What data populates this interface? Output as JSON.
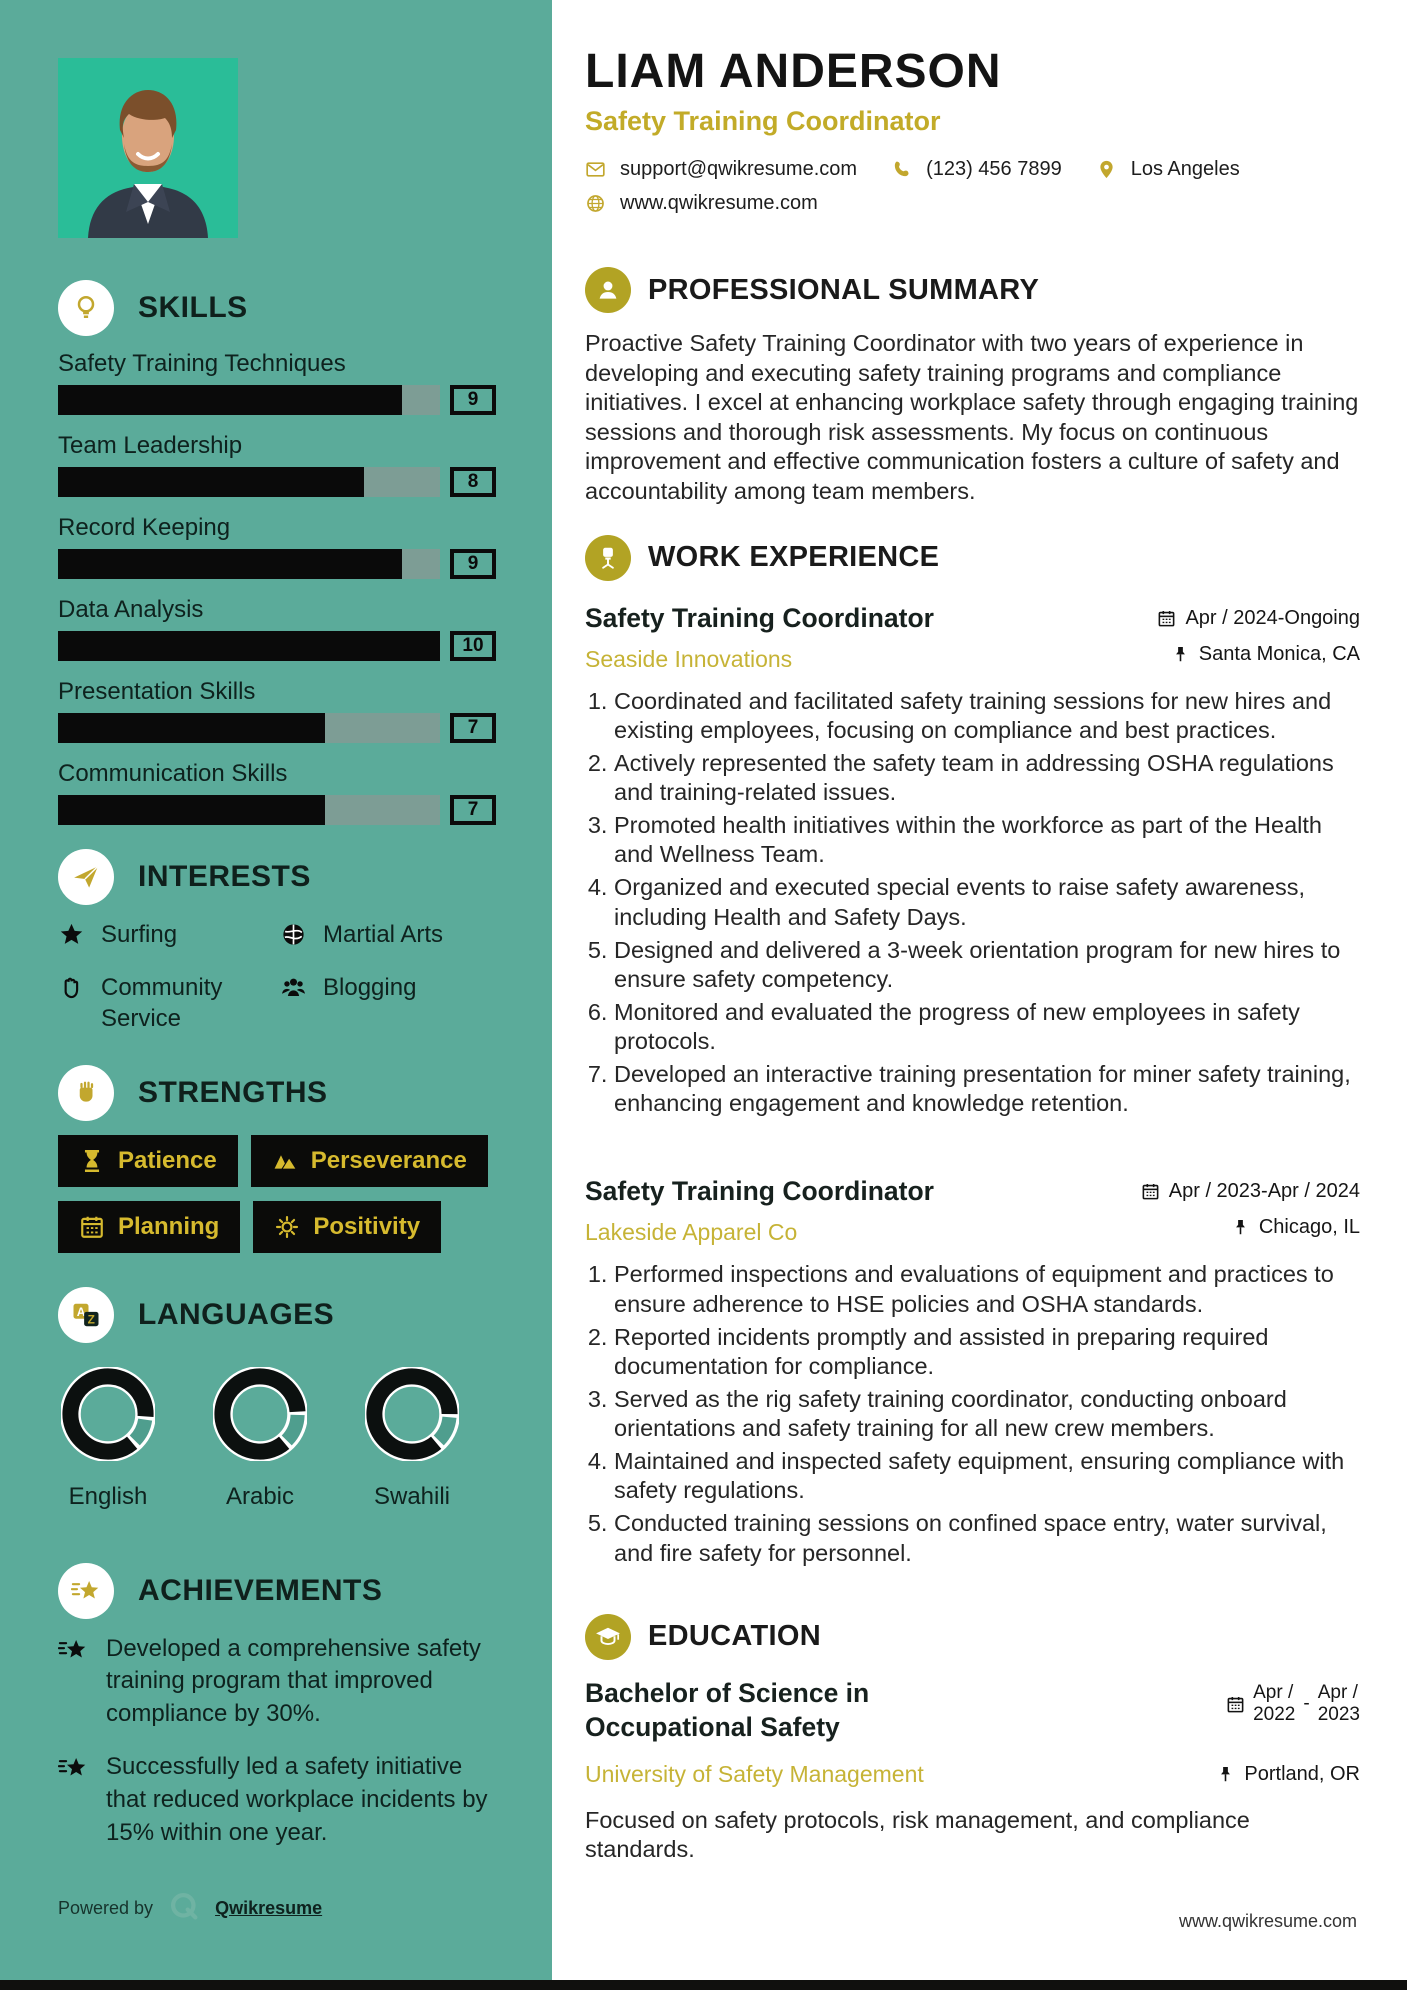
{
  "header": {
    "name": "LIAM ANDERSON",
    "title": "Safety Training Coordinator",
    "email": "support@qwikresume.com",
    "phone": "(123) 456 7899",
    "location": "Los Angeles",
    "website": "www.qwikresume.com"
  },
  "sidebar": {
    "skills": {
      "title": "SKILLS",
      "icon": "lightbulb",
      "items": [
        {
          "label": "Safety Training Techniques",
          "value": 9
        },
        {
          "label": "Team Leadership",
          "value": 8
        },
        {
          "label": "Record Keeping",
          "value": 9
        },
        {
          "label": "Data Analysis",
          "value": 10
        },
        {
          "label": "Presentation Skills",
          "value": 7
        },
        {
          "label": "Communication Skills",
          "value": 7
        }
      ]
    },
    "interests": {
      "title": "INTERESTS",
      "icon": "paper-plane",
      "items": [
        {
          "label": "Surfing",
          "icon": "star"
        },
        {
          "label": "Martial Arts",
          "icon": "globe"
        },
        {
          "label": "Community Service",
          "icon": "hand"
        },
        {
          "label": "Blogging",
          "icon": "users"
        }
      ]
    },
    "strengths": {
      "title": "STRENGTHS",
      "icon": "fist",
      "items": [
        {
          "label": "Patience",
          "icon": "hourglass"
        },
        {
          "label": "Perseverance",
          "icon": "mountains"
        },
        {
          "label": "Planning",
          "icon": "calendar"
        },
        {
          "label": "Positivity",
          "icon": "sun"
        }
      ]
    },
    "languages": {
      "title": "LANGUAGES",
      "icon": "translate",
      "items": [
        {
          "label": "English",
          "percent": 87
        },
        {
          "label": "Arabic",
          "percent": 85
        },
        {
          "label": "Swahili",
          "percent": 86
        }
      ]
    },
    "achievements": {
      "title": "ACHIEVEMENTS",
      "icon": "shooting-star",
      "items": [
        {
          "icon": "shooting-star",
          "text": "Developed a comprehensive safety training program that improved compliance by 30%."
        },
        {
          "icon": "shooting-star",
          "text": "Successfully led a safety initiative that reduced workplace incidents by 15% within one year."
        }
      ]
    },
    "powered_by": "Powered by",
    "brand": "Qwikresume"
  },
  "summary": {
    "title": "PROFESSIONAL SUMMARY",
    "icon": "person",
    "text": "Proactive Safety Training Coordinator with two years of experience in developing and executing safety training programs and compliance initiatives. I excel at enhancing workplace safety through engaging training sessions and thorough risk assessments. My focus on continuous improvement and effective communication fosters a culture of safety and accountability among team members."
  },
  "experience": {
    "title": "WORK EXPERIENCE",
    "icon": "office-chair",
    "jobs": [
      {
        "role": "Safety Training Coordinator",
        "company": "Seaside Innovations",
        "dates": "Apr / 2024-Ongoing",
        "location": "Santa Monica, CA",
        "bullets": [
          "Coordinated and facilitated safety training sessions for new hires and existing employees, focusing on compliance and best practices.",
          "Actively represented the safety team in addressing OSHA regulations and training-related issues.",
          "Promoted health initiatives within the workforce as part of the Health and Wellness Team.",
          "Organized and executed special events to raise safety awareness, including Health and Safety Days.",
          "Designed and delivered a 3-week orientation program for new hires to ensure safety competency.",
          "Monitored and evaluated the progress of new employees in safety protocols.",
          "Developed an interactive training presentation for miner safety training, enhancing engagement and knowledge retention."
        ]
      },
      {
        "role": "Safety Training Coordinator",
        "company": "Lakeside Apparel Co",
        "dates": "Apr / 2023-Apr / 2024",
        "location": "Chicago, IL",
        "bullets": [
          "Performed inspections and evaluations of equipment and practices to ensure adherence to HSE policies and OSHA standards.",
          "Reported incidents promptly and assisted in preparing required documentation for compliance.",
          "Served as the rig safety training coordinator, conducting onboard orientations and safety training for all new crew members.",
          "Maintained and inspected safety equipment, ensuring compliance with safety regulations.",
          "Conducted training sessions on confined space entry, water survival, and fire safety for personnel."
        ]
      }
    ]
  },
  "education": {
    "title": "EDUCATION",
    "icon": "graduation-cap",
    "degree": "Bachelor of Science in Occupational Safety",
    "school": "University of Safety Management",
    "date_start_top": "Apr /",
    "date_start_bottom": "2022",
    "date_separator": "-",
    "date_end_top": "Apr /",
    "date_end_bottom": "2023",
    "location": "Portland, OR",
    "description": "Focused on safety protocols, risk management, and compliance standards."
  },
  "footer": {
    "site": "www.qwikresume.com"
  },
  "colors": {
    "sidebar_teal": "#5bab9a",
    "photo_teal": "#2abd98",
    "gold": "#c2a72e",
    "chip_bg": "#0b0b09",
    "chip_gold": "#d6ba2e",
    "track": "#7d9d95"
  }
}
